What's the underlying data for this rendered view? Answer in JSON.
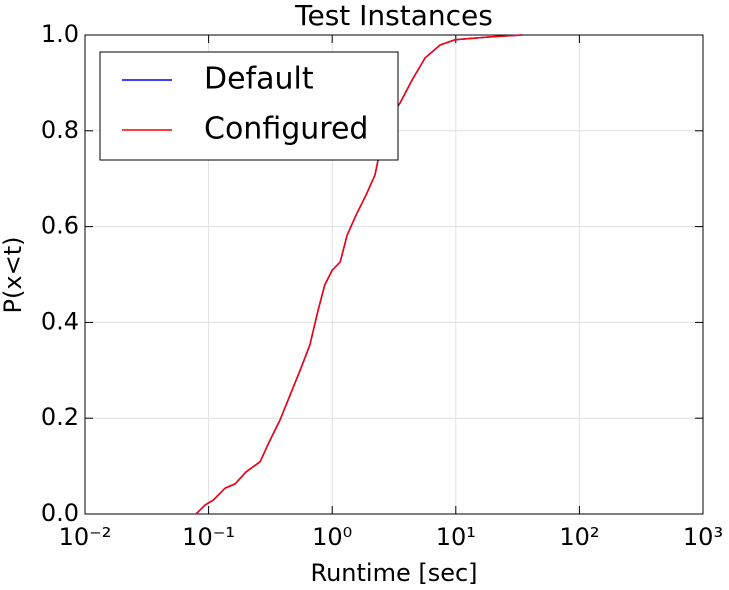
{
  "chart_data": {
    "type": "line",
    "title": "Test Instances",
    "xlabel": "Runtime [sec]",
    "ylabel": "P(x<t)",
    "xscale": "log",
    "grid": true,
    "legend": "upper left",
    "x": [
      0.079,
      0.094,
      0.109,
      0.136,
      0.164,
      0.201,
      0.261,
      0.314,
      0.378,
      0.456,
      0.55,
      0.66,
      0.77,
      0.87,
      1.0,
      1.16,
      1.32,
      1.56,
      1.88,
      2.22,
      2.44,
      2.83,
      3.54,
      4.43,
      5.64,
      7.45,
      9.86,
      18.9,
      34.4
    ],
    "series": [
      {
        "name": "Default",
        "color": "#0000ff",
        "values": [
          0,
          0.019,
          0.029,
          0.054,
          0.063,
          0.088,
          0.109,
          0.154,
          0.196,
          0.248,
          0.3,
          0.353,
          0.426,
          0.478,
          0.509,
          0.526,
          0.582,
          0.624,
          0.666,
          0.708,
          0.76,
          0.823,
          0.858,
          0.906,
          0.952,
          0.979,
          0.99,
          0.996,
          1.0
        ]
      },
      {
        "name": "Configured",
        "color": "#ff0000",
        "values": [
          0,
          0.019,
          0.029,
          0.054,
          0.063,
          0.088,
          0.109,
          0.154,
          0.196,
          0.248,
          0.3,
          0.353,
          0.426,
          0.478,
          0.509,
          0.526,
          0.582,
          0.624,
          0.666,
          0.708,
          0.76,
          0.823,
          0.858,
          0.906,
          0.952,
          0.979,
          0.99,
          0.996,
          1.0
        ]
      }
    ],
    "xlim": [
      0.01,
      1000
    ],
    "xticks": [
      {
        "value": 0.01,
        "label": "10⁻²"
      },
      {
        "value": 0.1,
        "label": "10⁻¹"
      },
      {
        "value": 1,
        "label": "10⁰"
      },
      {
        "value": 10,
        "label": "10¹"
      },
      {
        "value": 100,
        "label": "10²"
      },
      {
        "value": 1000,
        "label": "10³"
      }
    ],
    "ylim": [
      0,
      1
    ],
    "yticks": [
      {
        "value": 0,
        "label": "0.0"
      },
      0.2,
      0.4,
      0.6,
      0.8,
      {
        "value": 1,
        "label": "1.0"
      }
    ]
  }
}
